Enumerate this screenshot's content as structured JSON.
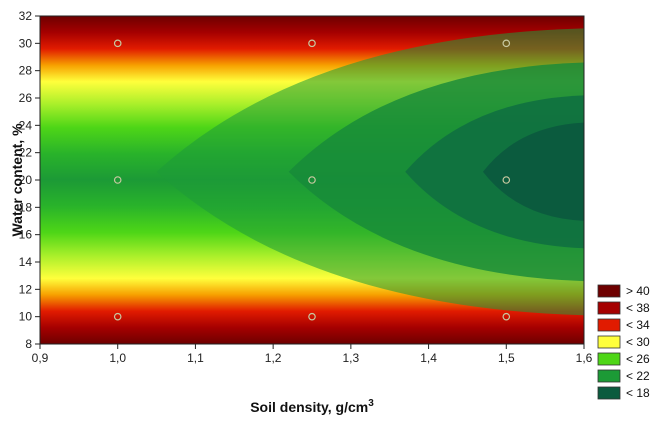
{
  "chart_data": {
    "type": "heatmap",
    "subtype": "contour",
    "title": "",
    "xlabel": "Soil density, g/cm",
    "xlabel_superscript": "3",
    "ylabel": "Water content, %",
    "xlim": [
      0.9,
      1.6
    ],
    "ylim": [
      8,
      32
    ],
    "x_ticks": [
      "0,9",
      "1,0",
      "1,1",
      "1,2",
      "1,3",
      "1,4",
      "1,5",
      "1,6"
    ],
    "y_ticks": [
      "8",
      "10",
      "12",
      "14",
      "16",
      "18",
      "20",
      "22",
      "24",
      "26",
      "28",
      "30",
      "32"
    ],
    "grid": false,
    "legend_position": "bottom-right",
    "legend": [
      {
        "label": "> 40",
        "color": "#6e0000"
      },
      {
        "label": "< 38",
        "color": "#a50000"
      },
      {
        "label": "< 34",
        "color": "#e11b00"
      },
      {
        "label": "< 30",
        "color": "#ffff3c"
      },
      {
        "label": "< 26",
        "color": "#4ed617"
      },
      {
        "label": "< 22",
        "color": "#1c9a36"
      },
      {
        "label": "< 18",
        "color": "#0b5b3e"
      }
    ],
    "sample_points": [
      {
        "x": 1.0,
        "y": 10
      },
      {
        "x": 1.25,
        "y": 10
      },
      {
        "x": 1.5,
        "y": 10
      },
      {
        "x": 1.0,
        "y": 20
      },
      {
        "x": 1.25,
        "y": 20
      },
      {
        "x": 1.5,
        "y": 20
      },
      {
        "x": 1.0,
        "y": 30
      },
      {
        "x": 1.25,
        "y": 30
      },
      {
        "x": 1.5,
        "y": 30
      }
    ]
  }
}
